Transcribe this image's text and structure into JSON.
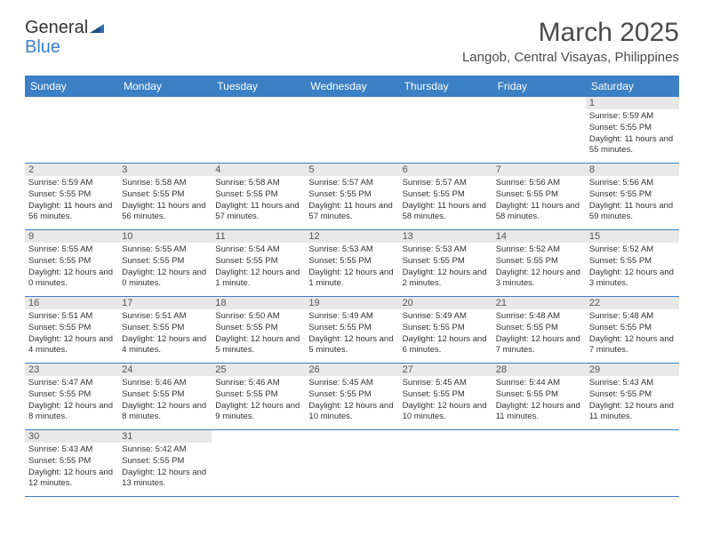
{
  "logo": {
    "text1": "General",
    "text2": "Blue"
  },
  "title": "March 2025",
  "location": "Langob, Central Visayas, Philippines",
  "colors": {
    "header_bg": "#3b7fc4",
    "header_text": "#ffffff",
    "daynum_bg": "#e8e8e8",
    "text": "#333333",
    "border": "#3b7fc4"
  },
  "day_headers": [
    "Sunday",
    "Monday",
    "Tuesday",
    "Wednesday",
    "Thursday",
    "Friday",
    "Saturday"
  ],
  "weeks": [
    [
      {
        "day": "",
        "sunrise": "",
        "sunset": "",
        "daylight": ""
      },
      {
        "day": "",
        "sunrise": "",
        "sunset": "",
        "daylight": ""
      },
      {
        "day": "",
        "sunrise": "",
        "sunset": "",
        "daylight": ""
      },
      {
        "day": "",
        "sunrise": "",
        "sunset": "",
        "daylight": ""
      },
      {
        "day": "",
        "sunrise": "",
        "sunset": "",
        "daylight": ""
      },
      {
        "day": "",
        "sunrise": "",
        "sunset": "",
        "daylight": ""
      },
      {
        "day": "1",
        "sunrise": "Sunrise: 5:59 AM",
        "sunset": "Sunset: 5:55 PM",
        "daylight": "Daylight: 11 hours and 55 minutes."
      }
    ],
    [
      {
        "day": "2",
        "sunrise": "Sunrise: 5:59 AM",
        "sunset": "Sunset: 5:55 PM",
        "daylight": "Daylight: 11 hours and 56 minutes."
      },
      {
        "day": "3",
        "sunrise": "Sunrise: 5:58 AM",
        "sunset": "Sunset: 5:55 PM",
        "daylight": "Daylight: 11 hours and 56 minutes."
      },
      {
        "day": "4",
        "sunrise": "Sunrise: 5:58 AM",
        "sunset": "Sunset: 5:55 PM",
        "daylight": "Daylight: 11 hours and 57 minutes."
      },
      {
        "day": "5",
        "sunrise": "Sunrise: 5:57 AM",
        "sunset": "Sunset: 5:55 PM",
        "daylight": "Daylight: 11 hours and 57 minutes."
      },
      {
        "day": "6",
        "sunrise": "Sunrise: 5:57 AM",
        "sunset": "Sunset: 5:55 PM",
        "daylight": "Daylight: 11 hours and 58 minutes."
      },
      {
        "day": "7",
        "sunrise": "Sunrise: 5:56 AM",
        "sunset": "Sunset: 5:55 PM",
        "daylight": "Daylight: 11 hours and 58 minutes."
      },
      {
        "day": "8",
        "sunrise": "Sunrise: 5:56 AM",
        "sunset": "Sunset: 5:55 PM",
        "daylight": "Daylight: 11 hours and 59 minutes."
      }
    ],
    [
      {
        "day": "9",
        "sunrise": "Sunrise: 5:55 AM",
        "sunset": "Sunset: 5:55 PM",
        "daylight": "Daylight: 12 hours and 0 minutes."
      },
      {
        "day": "10",
        "sunrise": "Sunrise: 5:55 AM",
        "sunset": "Sunset: 5:55 PM",
        "daylight": "Daylight: 12 hours and 0 minutes."
      },
      {
        "day": "11",
        "sunrise": "Sunrise: 5:54 AM",
        "sunset": "Sunset: 5:55 PM",
        "daylight": "Daylight: 12 hours and 1 minute."
      },
      {
        "day": "12",
        "sunrise": "Sunrise: 5:53 AM",
        "sunset": "Sunset: 5:55 PM",
        "daylight": "Daylight: 12 hours and 1 minute."
      },
      {
        "day": "13",
        "sunrise": "Sunrise: 5:53 AM",
        "sunset": "Sunset: 5:55 PM",
        "daylight": "Daylight: 12 hours and 2 minutes."
      },
      {
        "day": "14",
        "sunrise": "Sunrise: 5:52 AM",
        "sunset": "Sunset: 5:55 PM",
        "daylight": "Daylight: 12 hours and 3 minutes."
      },
      {
        "day": "15",
        "sunrise": "Sunrise: 5:52 AM",
        "sunset": "Sunset: 5:55 PM",
        "daylight": "Daylight: 12 hours and 3 minutes."
      }
    ],
    [
      {
        "day": "16",
        "sunrise": "Sunrise: 5:51 AM",
        "sunset": "Sunset: 5:55 PM",
        "daylight": "Daylight: 12 hours and 4 minutes."
      },
      {
        "day": "17",
        "sunrise": "Sunrise: 5:51 AM",
        "sunset": "Sunset: 5:55 PM",
        "daylight": "Daylight: 12 hours and 4 minutes."
      },
      {
        "day": "18",
        "sunrise": "Sunrise: 5:50 AM",
        "sunset": "Sunset: 5:55 PM",
        "daylight": "Daylight: 12 hours and 5 minutes."
      },
      {
        "day": "19",
        "sunrise": "Sunrise: 5:49 AM",
        "sunset": "Sunset: 5:55 PM",
        "daylight": "Daylight: 12 hours and 5 minutes."
      },
      {
        "day": "20",
        "sunrise": "Sunrise: 5:49 AM",
        "sunset": "Sunset: 5:55 PM",
        "daylight": "Daylight: 12 hours and 6 minutes."
      },
      {
        "day": "21",
        "sunrise": "Sunrise: 5:48 AM",
        "sunset": "Sunset: 5:55 PM",
        "daylight": "Daylight: 12 hours and 7 minutes."
      },
      {
        "day": "22",
        "sunrise": "Sunrise: 5:48 AM",
        "sunset": "Sunset: 5:55 PM",
        "daylight": "Daylight: 12 hours and 7 minutes."
      }
    ],
    [
      {
        "day": "23",
        "sunrise": "Sunrise: 5:47 AM",
        "sunset": "Sunset: 5:55 PM",
        "daylight": "Daylight: 12 hours and 8 minutes."
      },
      {
        "day": "24",
        "sunrise": "Sunrise: 5:46 AM",
        "sunset": "Sunset: 5:55 PM",
        "daylight": "Daylight: 12 hours and 8 minutes."
      },
      {
        "day": "25",
        "sunrise": "Sunrise: 5:46 AM",
        "sunset": "Sunset: 5:55 PM",
        "daylight": "Daylight: 12 hours and 9 minutes."
      },
      {
        "day": "26",
        "sunrise": "Sunrise: 5:45 AM",
        "sunset": "Sunset: 5:55 PM",
        "daylight": "Daylight: 12 hours and 10 minutes."
      },
      {
        "day": "27",
        "sunrise": "Sunrise: 5:45 AM",
        "sunset": "Sunset: 5:55 PM",
        "daylight": "Daylight: 12 hours and 10 minutes."
      },
      {
        "day": "28",
        "sunrise": "Sunrise: 5:44 AM",
        "sunset": "Sunset: 5:55 PM",
        "daylight": "Daylight: 12 hours and 11 minutes."
      },
      {
        "day": "29",
        "sunrise": "Sunrise: 5:43 AM",
        "sunset": "Sunset: 5:55 PM",
        "daylight": "Daylight: 12 hours and 11 minutes."
      }
    ],
    [
      {
        "day": "30",
        "sunrise": "Sunrise: 5:43 AM",
        "sunset": "Sunset: 5:55 PM",
        "daylight": "Daylight: 12 hours and 12 minutes."
      },
      {
        "day": "31",
        "sunrise": "Sunrise: 5:42 AM",
        "sunset": "Sunset: 5:55 PM",
        "daylight": "Daylight: 12 hours and 13 minutes."
      },
      {
        "day": "",
        "sunrise": "",
        "sunset": "",
        "daylight": ""
      },
      {
        "day": "",
        "sunrise": "",
        "sunset": "",
        "daylight": ""
      },
      {
        "day": "",
        "sunrise": "",
        "sunset": "",
        "daylight": ""
      },
      {
        "day": "",
        "sunrise": "",
        "sunset": "",
        "daylight": ""
      },
      {
        "day": "",
        "sunrise": "",
        "sunset": "",
        "daylight": ""
      }
    ]
  ]
}
